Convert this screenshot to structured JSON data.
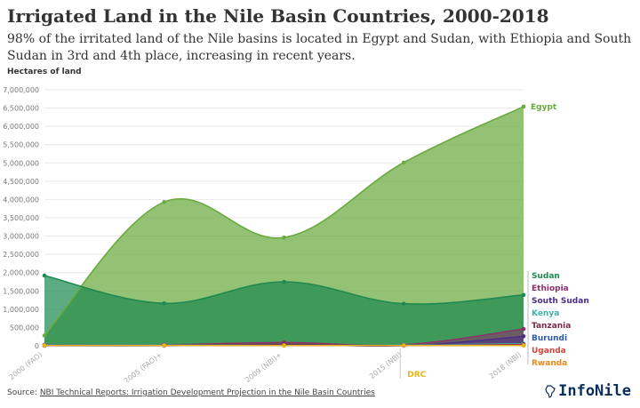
{
  "title": "Irrigated Land in the Nile Basin Countries, 2000-2018",
  "subtitle": "98% of the irritated land of the Nile basins is located in Egypt and Sudan, with Ethiopia and South Sudan in 3rd and 4th place, increasing in recent years.",
  "source_prefix": "Source: ",
  "source_link": "NBI Technical Reports: Irrigation Development Projection in the Nile Basin Countries",
  "brand": "InfoNile",
  "brand_icon": "africa-map-icon",
  "chart_data": {
    "type": "area",
    "ylabel": "Hectares of land",
    "categories": [
      "2000 (FAO)",
      "2005 (FAO)+",
      "2009 (NBI)+",
      "2015 (NBI)",
      "2018 (NBI)"
    ],
    "ylim": [
      0,
      7000000
    ],
    "yticks": [
      0,
      500000,
      1000000,
      1500000,
      2000000,
      2500000,
      3000000,
      3500000,
      4000000,
      4500000,
      5000000,
      5500000,
      6000000,
      6500000,
      7000000
    ],
    "ytick_labels": [
      "0",
      "500,000",
      "1,000,000",
      "1,500,000",
      "2,000,000",
      "2,500,000",
      "3,000,000",
      "3,500,000",
      "4,000,000",
      "4,500,000",
      "5,000,000",
      "5,500,000",
      "6,000,000",
      "6,500,000",
      "7,000,000"
    ],
    "grid": true,
    "series": [
      {
        "name": "Egypt",
        "color": "#6aaa3f",
        "values": [
          280000,
          3930000,
          2960000,
          5010000,
          6540000
        ]
      },
      {
        "name": "Sudan",
        "color": "#1f8a50",
        "values": [
          1920000,
          1160000,
          1750000,
          1150000,
          1390000
        ]
      },
      {
        "name": "Ethiopia",
        "color": "#8e2d6a",
        "values": [
          30000,
          30000,
          90000,
          30000,
          460000
        ]
      },
      {
        "name": "South Sudan",
        "color": "#4b2d8a",
        "values": [
          0,
          0,
          40000,
          0,
          260000
        ]
      },
      {
        "name": "Kenya",
        "color": "#3bb3a8",
        "values": [
          20000,
          20000,
          30000,
          20000,
          60000
        ]
      },
      {
        "name": "Tanzania",
        "color": "#7a2a4a",
        "values": [
          10000,
          10000,
          30000,
          10000,
          40000
        ]
      },
      {
        "name": "Burundi",
        "color": "#2a5aa8",
        "values": [
          10000,
          10000,
          10000,
          10000,
          20000
        ]
      },
      {
        "name": "Uganda",
        "color": "#d9433b",
        "values": [
          10000,
          10000,
          10000,
          10000,
          20000
        ]
      },
      {
        "name": "Rwanda",
        "color": "#e58a1f",
        "values": [
          10000,
          10000,
          10000,
          10000,
          10000
        ]
      },
      {
        "name": "DRC",
        "color": "#e8b418",
        "values": [
          10000,
          10000,
          10000,
          10000,
          10000
        ]
      }
    ],
    "annotation": {
      "text": "DRC",
      "category": "2015 (NBI)",
      "color": "#e8b418"
    }
  }
}
